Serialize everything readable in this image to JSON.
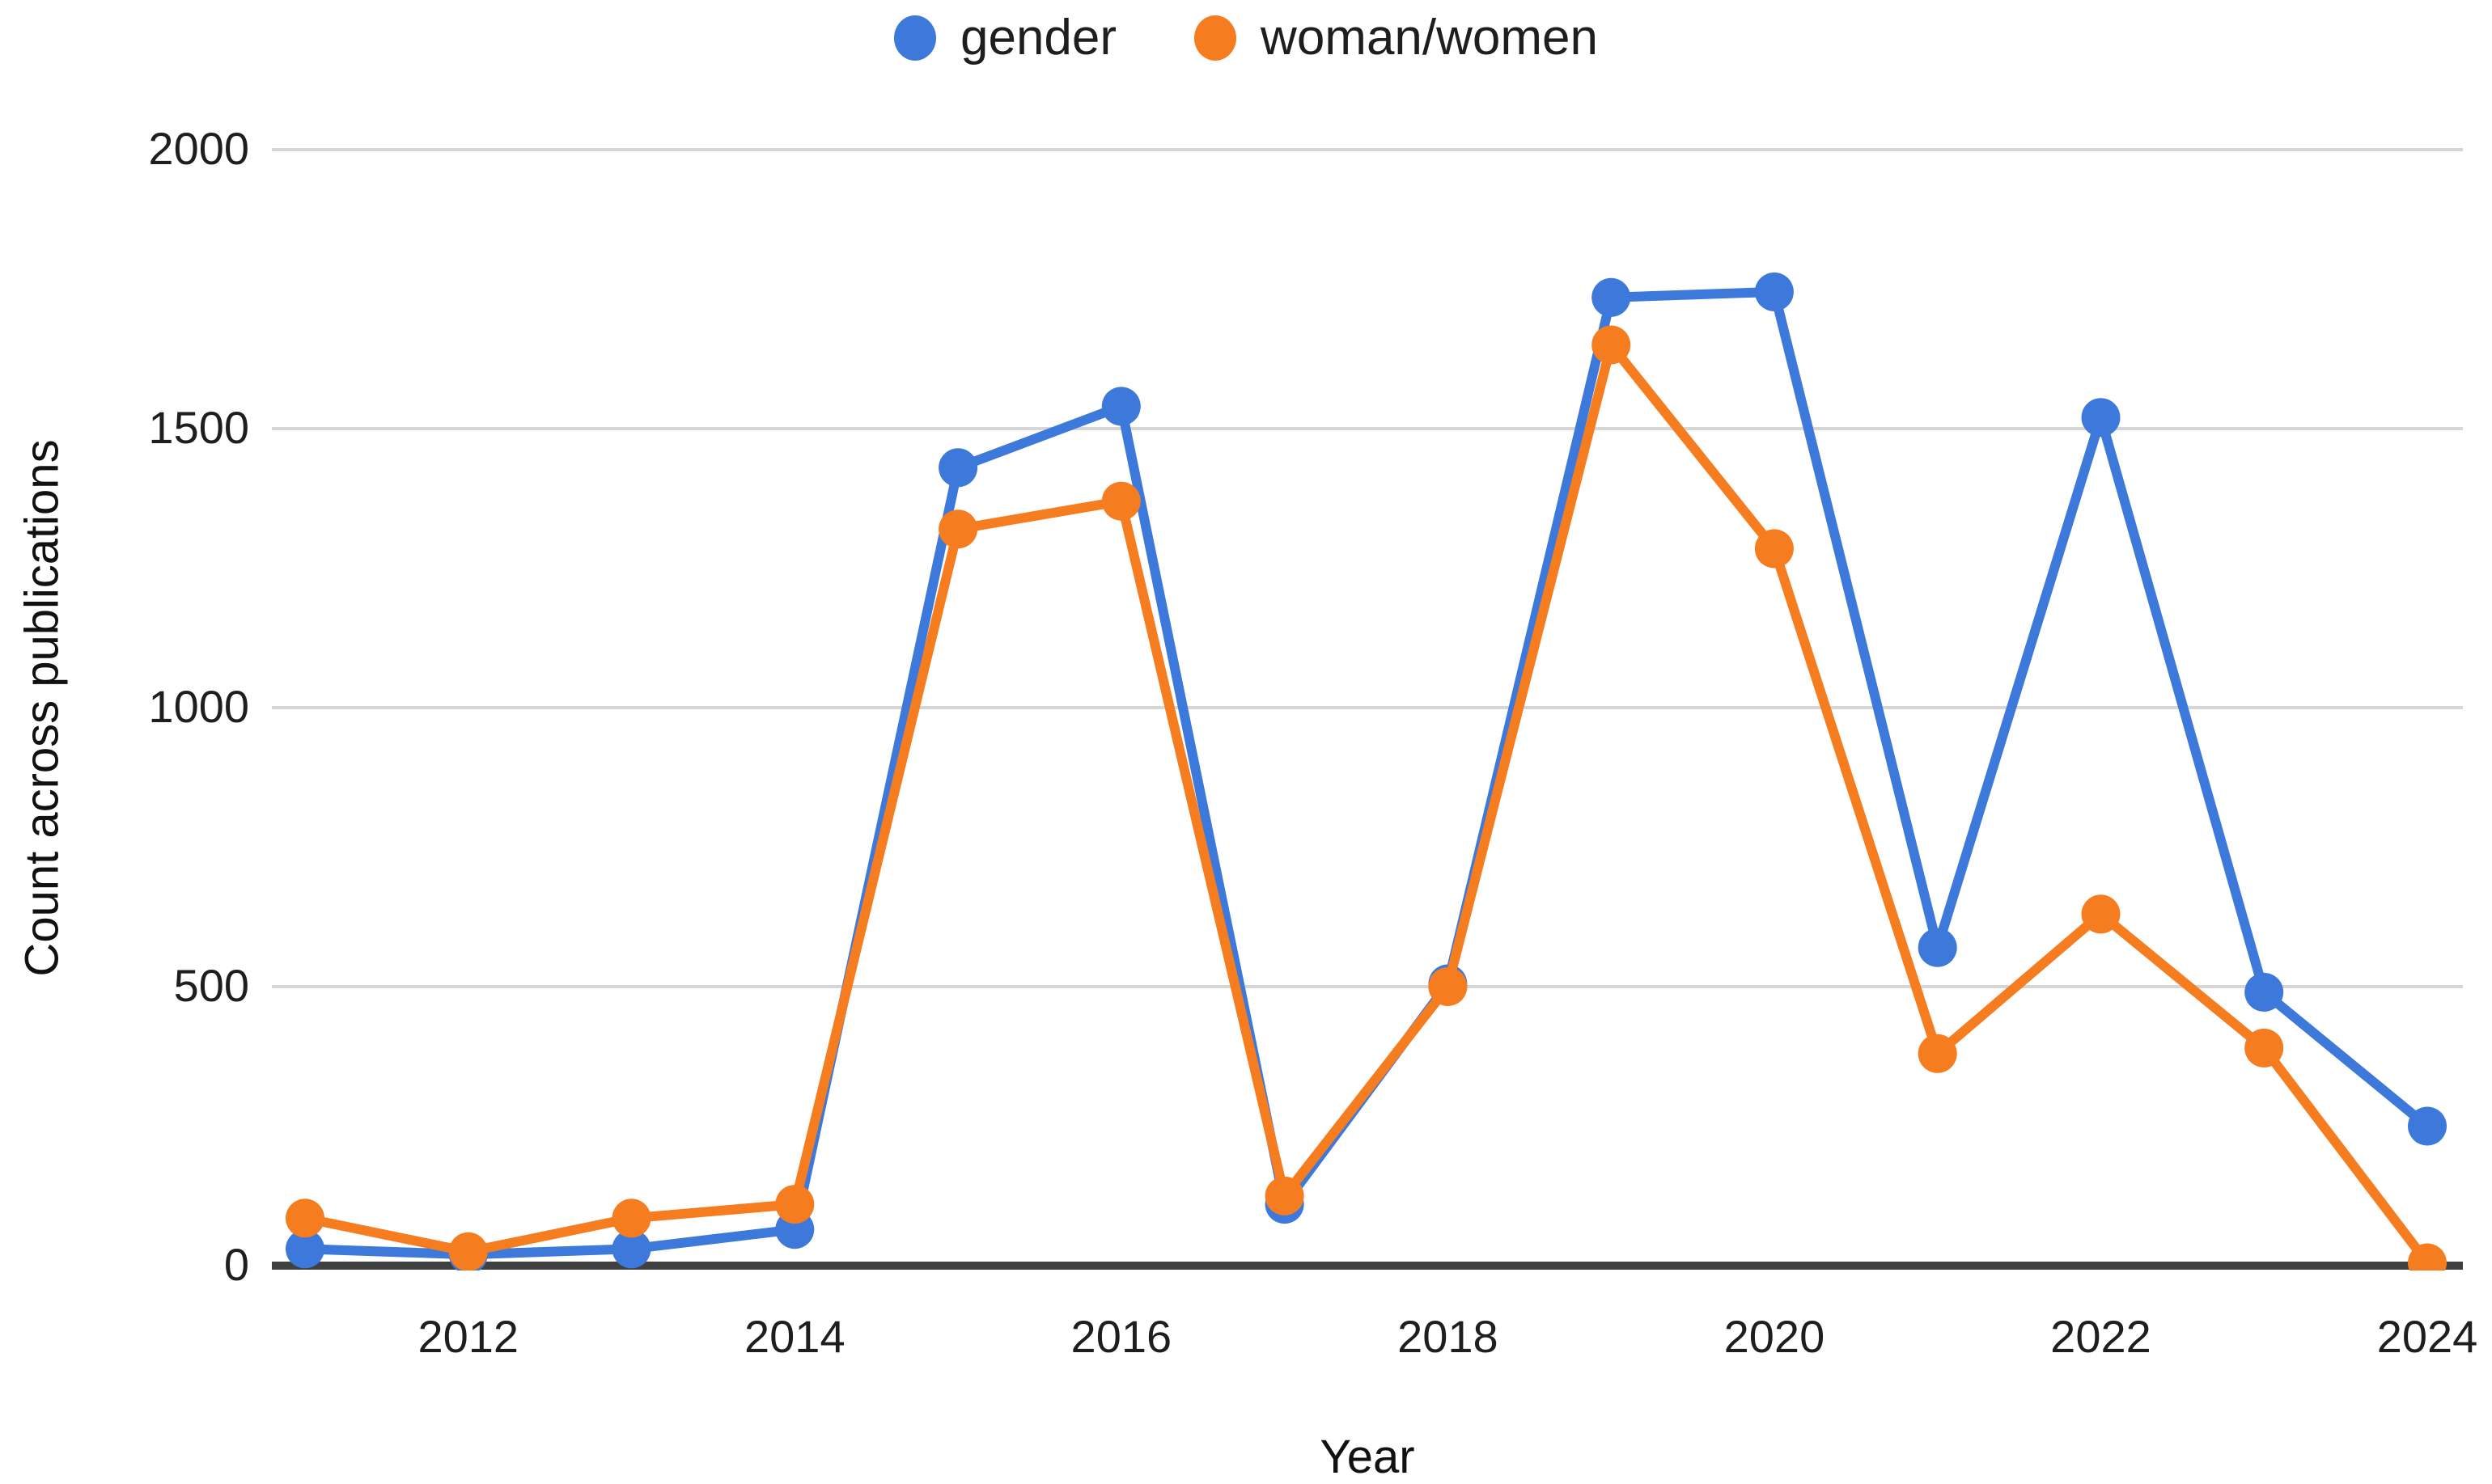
{
  "axes": {
    "x_title": "Year",
    "y_title": "Count across publications"
  },
  "chart_data": {
    "type": "line",
    "title": "",
    "xlabel": "Year",
    "ylabel": "Count across publications",
    "x": [
      2011,
      2012,
      2013,
      2014,
      2015,
      2016,
      2017,
      2018,
      2019,
      2020,
      2021,
      2022,
      2023,
      2024
    ],
    "x_ticks": [
      2012,
      2014,
      2016,
      2018,
      2020,
      2022,
      2024
    ],
    "y_ticks": [
      0,
      500,
      1000,
      1500,
      2000
    ],
    "ylim": [
      0,
      2000
    ],
    "grid": "horizontal",
    "legend_position": "top-center",
    "series": [
      {
        "name": "gender",
        "color": "#3D78DB",
        "values": [
          30,
          20,
          30,
          65,
          1430,
          1540,
          110,
          505,
          1735,
          1745,
          570,
          1520,
          490,
          250
        ]
      },
      {
        "name": "woman/women",
        "color": "#F67C20",
        "values": [
          85,
          25,
          85,
          110,
          1320,
          1370,
          125,
          500,
          1650,
          1285,
          380,
          630,
          390,
          5
        ]
      }
    ],
    "style": {
      "gridline_color": "#d6d6d6",
      "axis_line_color": "#404040",
      "tick_label_color": "#1e1e1e"
    }
  }
}
